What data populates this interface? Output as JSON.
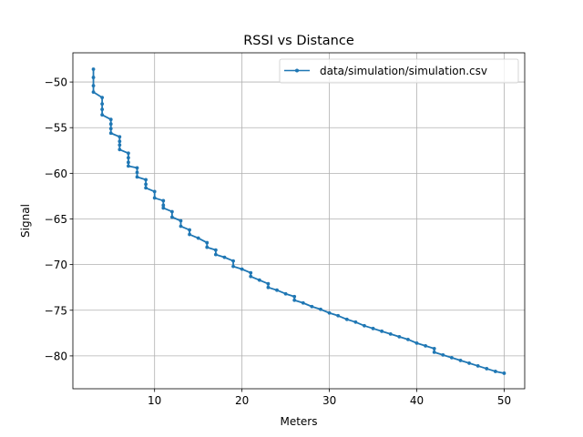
{
  "chart_data": {
    "type": "line",
    "title": "RSSI vs Distance",
    "xlabel": "Meters",
    "ylabel": "Signal",
    "xlim": [
      0.65,
      52.35
    ],
    "ylim": [
      -83.6,
      -46.8
    ],
    "x_ticks": [
      10,
      20,
      30,
      40,
      50
    ],
    "y_ticks": [
      -80,
      -75,
      -70,
      -65,
      -60,
      -55,
      -50
    ],
    "grid": true,
    "legend_position": "top-right",
    "series": [
      {
        "name": "data/simulation/simulation.csv",
        "color": "#1f77b4",
        "marker": "point",
        "points": [
          [
            3,
            -48.6
          ],
          [
            3,
            -49.5
          ],
          [
            3,
            -50.4
          ],
          [
            3,
            -51.1
          ],
          [
            4,
            -51.7
          ],
          [
            4,
            -52.4
          ],
          [
            4,
            -53.0
          ],
          [
            4,
            -53.6
          ],
          [
            5,
            -54.1
          ],
          [
            5,
            -54.6
          ],
          [
            5,
            -55.1
          ],
          [
            5,
            -55.6
          ],
          [
            6,
            -56.0
          ],
          [
            6,
            -56.5
          ],
          [
            6,
            -56.9
          ],
          [
            6,
            -57.4
          ],
          [
            7,
            -57.8
          ],
          [
            7,
            -58.3
          ],
          [
            7,
            -58.8
          ],
          [
            7,
            -59.2
          ],
          [
            8,
            -59.4
          ],
          [
            8,
            -59.9
          ],
          [
            8,
            -60.4
          ],
          [
            9,
            -60.7
          ],
          [
            9,
            -61.2
          ],
          [
            9,
            -61.6
          ],
          [
            10,
            -62.0
          ],
          [
            10,
            -62.7
          ],
          [
            11,
            -63.0
          ],
          [
            11,
            -63.5
          ],
          [
            11,
            -63.8
          ],
          [
            12,
            -64.2
          ],
          [
            12,
            -64.8
          ],
          [
            13,
            -65.2
          ],
          [
            13,
            -65.8
          ],
          [
            14,
            -66.2
          ],
          [
            14,
            -66.7
          ],
          [
            15,
            -67.1
          ],
          [
            16,
            -67.6
          ],
          [
            16,
            -68.1
          ],
          [
            17,
            -68.4
          ],
          [
            17,
            -68.9
          ],
          [
            18,
            -69.2
          ],
          [
            19,
            -69.6
          ],
          [
            19,
            -70.2
          ],
          [
            20,
            -70.5
          ],
          [
            21,
            -70.9
          ],
          [
            21,
            -71.3
          ],
          [
            22,
            -71.7
          ],
          [
            23,
            -72.1
          ],
          [
            23,
            -72.5
          ],
          [
            24,
            -72.8
          ],
          [
            25,
            -73.2
          ],
          [
            26,
            -73.5
          ],
          [
            26,
            -73.9
          ],
          [
            27,
            -74.2
          ],
          [
            28,
            -74.6
          ],
          [
            29,
            -74.9
          ],
          [
            30,
            -75.3
          ],
          [
            31,
            -75.6
          ],
          [
            32,
            -76.0
          ],
          [
            33,
            -76.3
          ],
          [
            34,
            -76.7
          ],
          [
            35,
            -77.0
          ],
          [
            36,
            -77.3
          ],
          [
            37,
            -77.6
          ],
          [
            38,
            -77.9
          ],
          [
            39,
            -78.2
          ],
          [
            40,
            -78.6
          ],
          [
            41,
            -78.9
          ],
          [
            42,
            -79.2
          ],
          [
            42,
            -79.6
          ],
          [
            43,
            -79.9
          ],
          [
            44,
            -80.2
          ],
          [
            45,
            -80.5
          ],
          [
            46,
            -80.8
          ],
          [
            47,
            -81.1
          ],
          [
            48,
            -81.4
          ],
          [
            49,
            -81.7
          ],
          [
            50,
            -81.9
          ]
        ]
      }
    ]
  }
}
